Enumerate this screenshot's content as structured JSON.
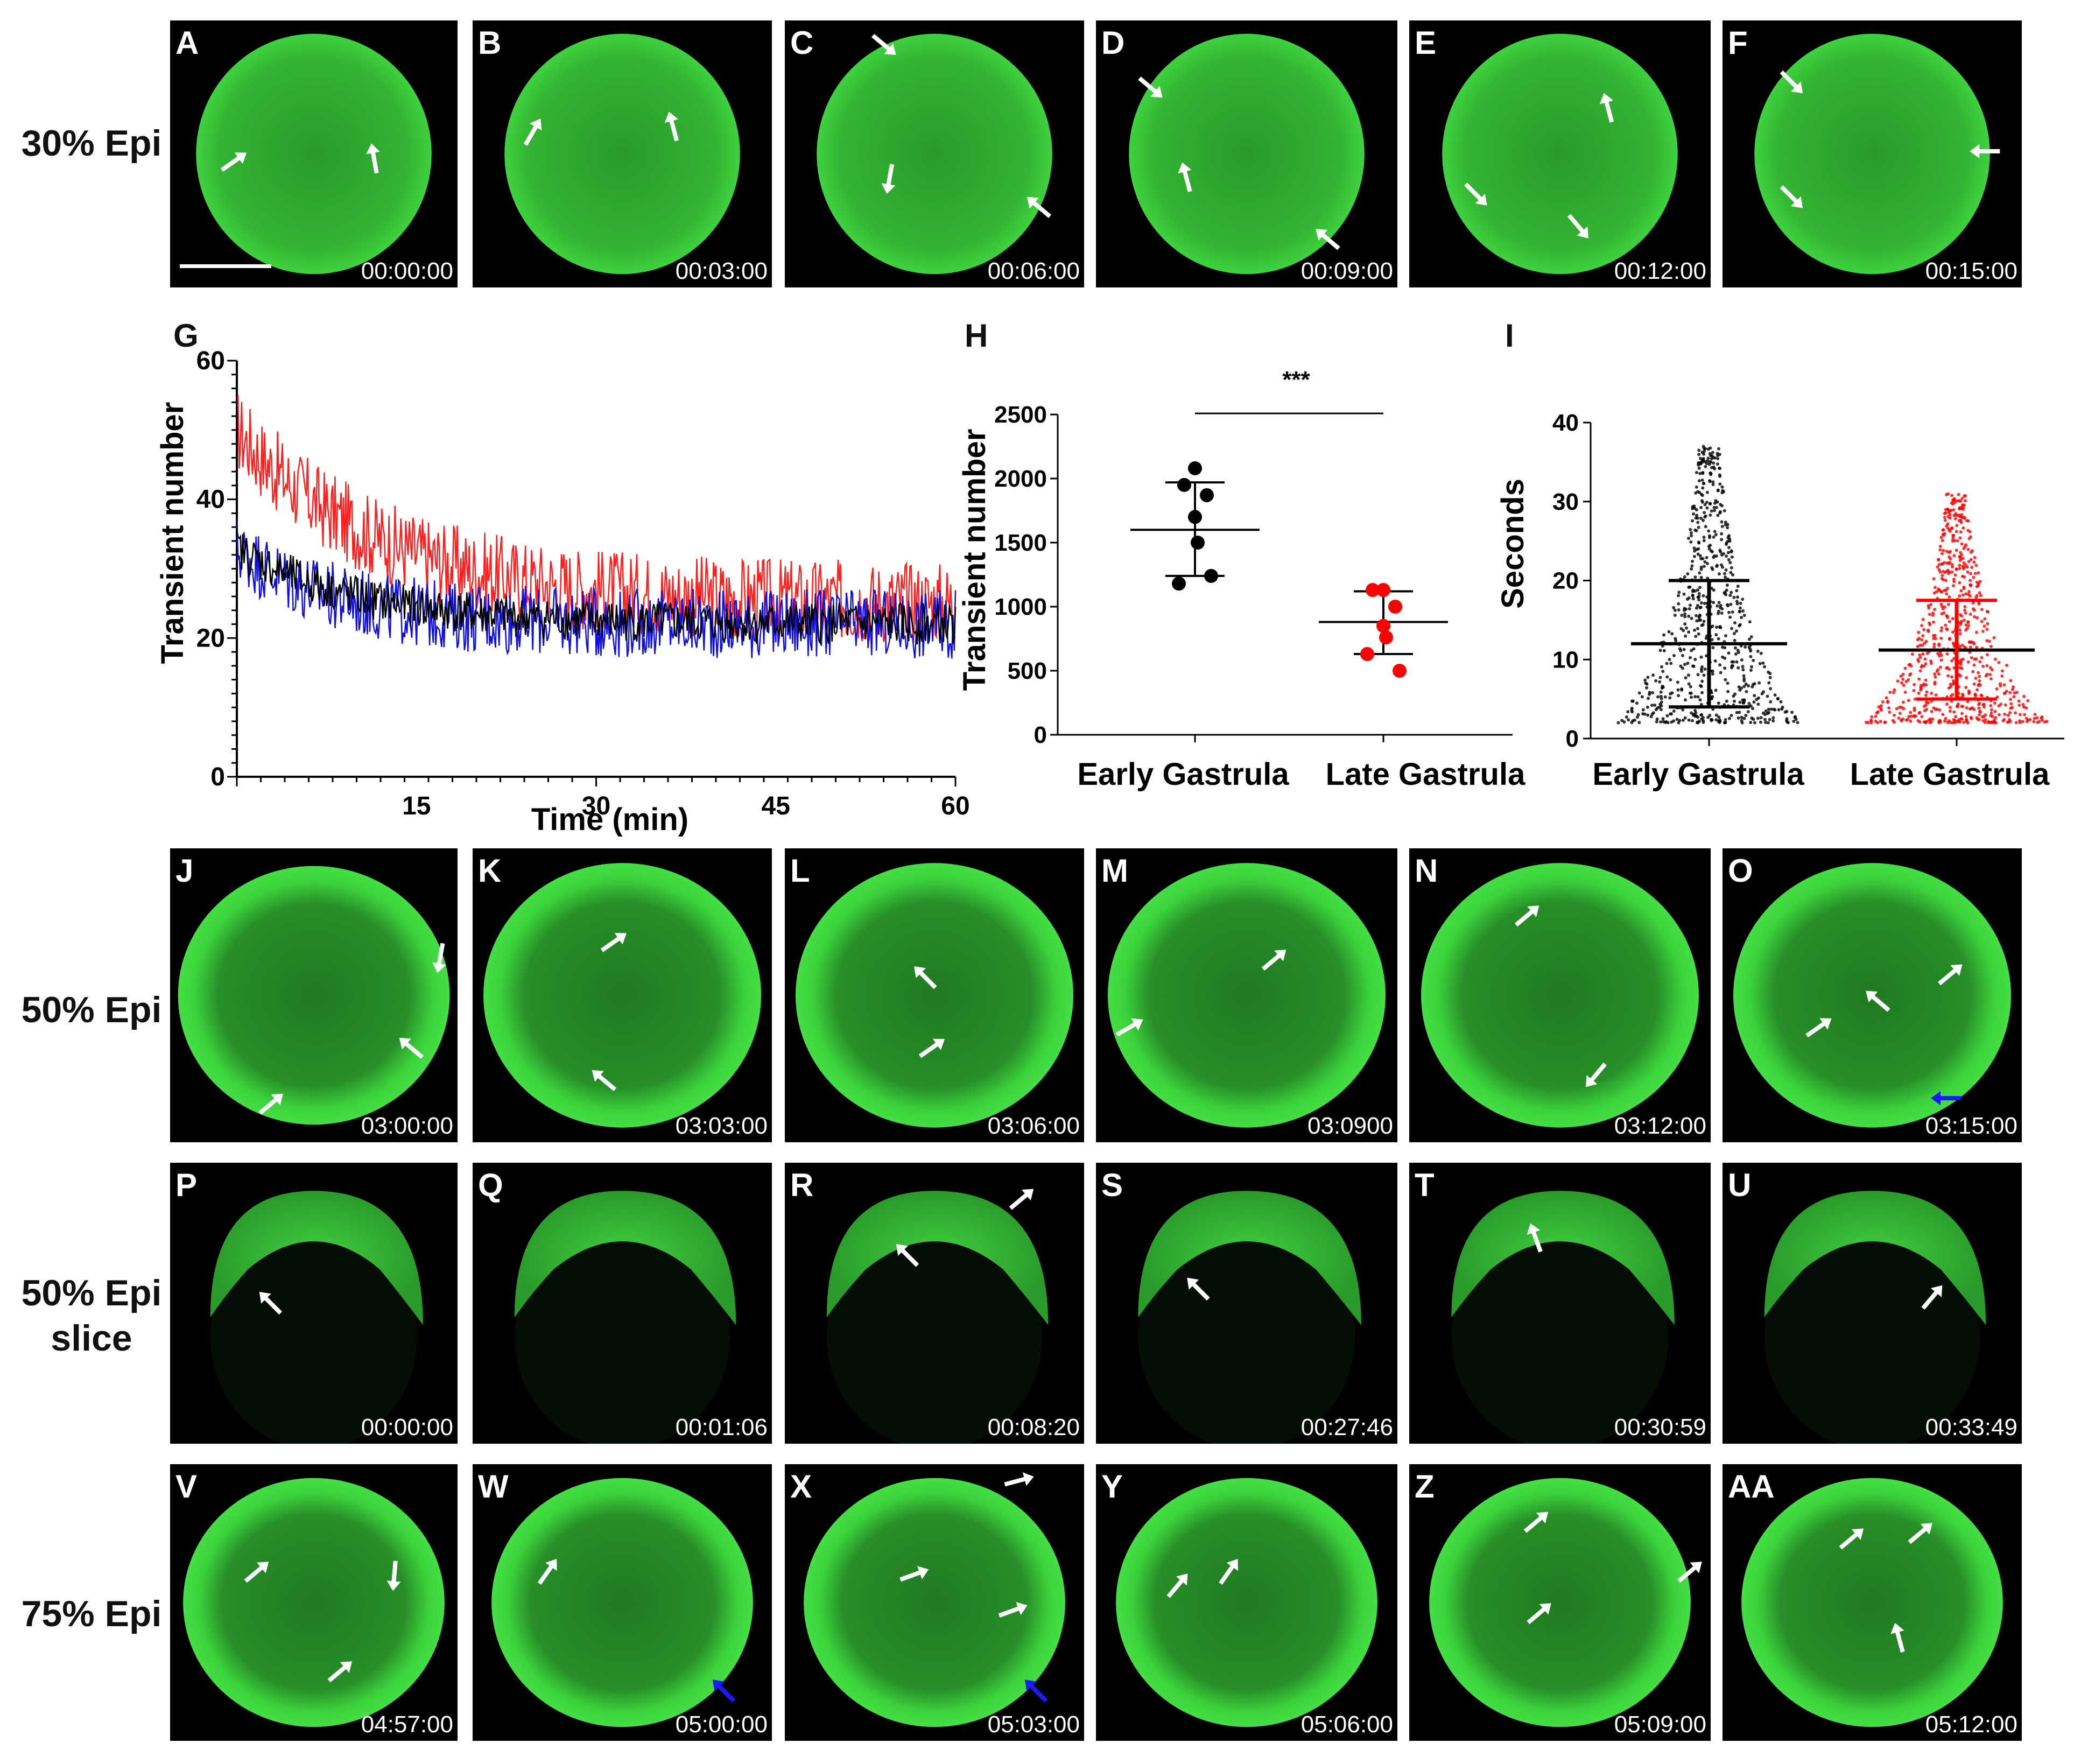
{
  "rows": [
    {
      "label_lines": [
        "30% Epi"
      ]
    },
    {
      "label_lines": [
        "50% Epi"
      ]
    },
    {
      "label_lines": [
        "50% Epi",
        "slice"
      ]
    },
    {
      "label_lines": [
        "75% Epi"
      ]
    }
  ],
  "panels": {
    "row1": [
      {
        "letter": "A",
        "time": "00:00:00"
      },
      {
        "letter": "B",
        "time": "00:03:00"
      },
      {
        "letter": "C",
        "time": "00:06:00"
      },
      {
        "letter": "D",
        "time": "00:09:00"
      },
      {
        "letter": "E",
        "time": "00:12:00"
      },
      {
        "letter": "F",
        "time": "00:15:00"
      }
    ],
    "row2": [
      {
        "letter": "J",
        "time": "03:00:00"
      },
      {
        "letter": "K",
        "time": "03:03:00"
      },
      {
        "letter": "L",
        "time": "03:06:00"
      },
      {
        "letter": "M",
        "time": "03:0900"
      },
      {
        "letter": "N",
        "time": "03:12:00"
      },
      {
        "letter": "O",
        "time": "03:15:00"
      }
    ],
    "row3": [
      {
        "letter": "P",
        "time": "00:00:00"
      },
      {
        "letter": "Q",
        "time": "00:01:06"
      },
      {
        "letter": "R",
        "time": "00:08:20"
      },
      {
        "letter": "S",
        "time": "00:27:46"
      },
      {
        "letter": "T",
        "time": "00:30:59"
      },
      {
        "letter": "U",
        "time": "00:33:49"
      }
    ],
    "row4": [
      {
        "letter": "V",
        "time": "04:57:00"
      },
      {
        "letter": "W",
        "time": "05:00:00"
      },
      {
        "letter": "X",
        "time": "05:03:00"
      },
      {
        "letter": "Y",
        "time": "05:06:00"
      },
      {
        "letter": "Z",
        "time": "05:09:00"
      },
      {
        "letter": "AA",
        "time": "05:12:00"
      }
    ]
  },
  "colors": {
    "embryo_green": "#35c43a",
    "arrow_white": "#ffffff",
    "arrow_blue": "#1a1aff",
    "series_red": "#ff2020",
    "series_blue": "#1010e0",
    "series_black": "#000000"
  },
  "chart_data": [
    {
      "letter": "G",
      "type": "line",
      "title": "",
      "xlabel": "Time (min)",
      "ylabel": "Transient number",
      "xlim": [
        0,
        60
      ],
      "ylim": [
        0,
        60
      ],
      "xticks": [
        "15",
        "30",
        "45",
        "60"
      ],
      "yticks": [
        "0",
        "20",
        "40",
        "60"
      ],
      "series": [
        {
          "name": "red",
          "color": "#ff2020",
          "start": 50,
          "end": 25,
          "noise": 6,
          "decay": 12,
          "plateau_min": 32
        },
        {
          "name": "blue",
          "color": "#1010e0",
          "start": 33,
          "end": 22,
          "noise": 5,
          "decay": 8,
          "plateau_min": 18
        },
        {
          "name": "black",
          "color": "#000000",
          "start": 33,
          "end": 22,
          "noise": 3,
          "decay": 10,
          "plateau_min": 20
        }
      ]
    },
    {
      "letter": "H",
      "type": "scatter",
      "title": "",
      "xlabel": "",
      "ylabel": "Transient number",
      "ylim": [
        0,
        2500
      ],
      "yticks": [
        "0",
        "500",
        "1000",
        "1500",
        "2000",
        "2500"
      ],
      "categories": [
        "Early Gastrula",
        "Late Gastrula"
      ],
      "significance": "***",
      "series": [
        {
          "name": "Early Gastrula",
          "color": "#000000",
          "values": [
            2080,
            1950,
            1870,
            1700,
            1500,
            1180,
            1240
          ],
          "mean": 1600,
          "sd_low": 1240,
          "sd_high": 1970
        },
        {
          "name": "Late Gastrula",
          "color": "#ff0000",
          "values": [
            1130,
            1130,
            1000,
            850,
            760,
            630,
            500
          ],
          "mean": 880,
          "sd_low": 630,
          "sd_high": 1120
        }
      ]
    },
    {
      "letter": "I",
      "type": "scatter",
      "title": "",
      "xlabel": "",
      "ylabel": "Seconds",
      "ylim": [
        0,
        40
      ],
      "yticks": [
        "0",
        "10",
        "20",
        "30",
        "40"
      ],
      "categories": [
        "Early Gastrula",
        "Late Gastrula"
      ],
      "series": [
        {
          "name": "Early Gastrula",
          "color": "#000000",
          "mean": 12,
          "sd_low": 4,
          "sd_high": 20,
          "min": 2,
          "max": 37
        },
        {
          "name": "Late Gastrula",
          "color": "#ff0000",
          "mean": 11.2,
          "sd_low": 5,
          "sd_high": 17.5,
          "min": 2,
          "max": 31
        }
      ]
    }
  ]
}
